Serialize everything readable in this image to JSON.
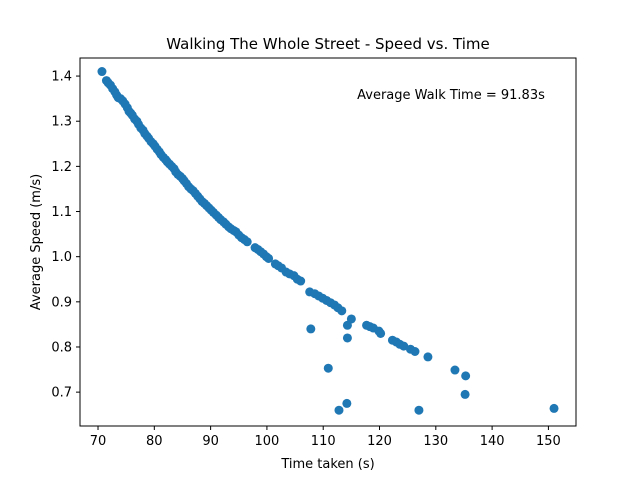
{
  "chart_data": {
    "type": "scatter",
    "title": "Walking The Whole Street - Speed vs. Time",
    "xlabel": "Time taken (s)",
    "ylabel": "Average Speed (m/s)",
    "annotation": "Average Walk Time = 91.83s",
    "xlim": [
      66.8,
      154.9
    ],
    "ylim": [
      0.625,
      1.44
    ],
    "xticks": [
      70,
      80,
      90,
      100,
      110,
      120,
      130,
      140,
      150
    ],
    "yticks": [
      0.7,
      0.8,
      0.9,
      1.0,
      1.1,
      1.2,
      1.3,
      1.4
    ],
    "xtick_labels": [
      "70",
      "80",
      "90",
      "100",
      "110",
      "120",
      "130",
      "140",
      "150"
    ],
    "ytick_labels": [
      "0.7",
      "0.8",
      "0.9",
      "1.0",
      "1.1",
      "1.2",
      "1.3",
      "1.4"
    ],
    "grid": false,
    "marker_color": "#1f77b4",
    "points": [
      [
        70.7,
        1.41
      ],
      [
        71.5,
        1.39
      ],
      [
        71.8,
        1.385
      ],
      [
        72.2,
        1.38
      ],
      [
        72.6,
        1.372
      ],
      [
        73.0,
        1.365
      ],
      [
        73.3,
        1.358
      ],
      [
        73.6,
        1.352
      ],
      [
        74.0,
        1.35
      ],
      [
        74.4,
        1.345
      ],
      [
        74.8,
        1.338
      ],
      [
        75.2,
        1.33
      ],
      [
        75.5,
        1.322
      ],
      [
        75.8,
        1.318
      ],
      [
        76.1,
        1.313
      ],
      [
        76.5,
        1.305
      ],
      [
        76.9,
        1.3
      ],
      [
        77.2,
        1.293
      ],
      [
        77.6,
        1.285
      ],
      [
        78.0,
        1.28
      ],
      [
        78.3,
        1.273
      ],
      [
        78.7,
        1.267
      ],
      [
        79.0,
        1.262
      ],
      [
        79.4,
        1.255
      ],
      [
        79.8,
        1.25
      ],
      [
        80.1,
        1.245
      ],
      [
        80.5,
        1.238
      ],
      [
        80.9,
        1.232
      ],
      [
        81.2,
        1.226
      ],
      [
        81.6,
        1.22
      ],
      [
        82.0,
        1.215
      ],
      [
        82.3,
        1.21
      ],
      [
        82.7,
        1.205
      ],
      [
        83.1,
        1.2
      ],
      [
        83.5,
        1.195
      ],
      [
        83.8,
        1.188
      ],
      [
        84.2,
        1.182
      ],
      [
        84.6,
        1.178
      ],
      [
        85.0,
        1.173
      ],
      [
        85.3,
        1.168
      ],
      [
        85.7,
        1.162
      ],
      [
        86.1,
        1.155
      ],
      [
        86.5,
        1.15
      ],
      [
        86.9,
        1.146
      ],
      [
        87.3,
        1.14
      ],
      [
        87.7,
        1.134
      ],
      [
        88.1,
        1.128
      ],
      [
        88.5,
        1.122
      ],
      [
        88.9,
        1.118
      ],
      [
        89.3,
        1.113
      ],
      [
        89.7,
        1.108
      ],
      [
        90.1,
        1.103
      ],
      [
        90.5,
        1.098
      ],
      [
        91.0,
        1.092
      ],
      [
        91.4,
        1.087
      ],
      [
        91.8,
        1.082
      ],
      [
        92.3,
        1.077
      ],
      [
        92.7,
        1.072
      ],
      [
        93.2,
        1.066
      ],
      [
        93.6,
        1.062
      ],
      [
        94.1,
        1.058
      ],
      [
        94.5,
        1.055
      ],
      [
        95.0,
        1.048
      ],
      [
        95.5,
        1.042
      ],
      [
        96.0,
        1.038
      ],
      [
        96.5,
        1.033
      ],
      [
        97.9,
        1.02
      ],
      [
        98.4,
        1.016
      ],
      [
        98.9,
        1.011
      ],
      [
        99.4,
        1.006
      ],
      [
        99.9,
        1.0
      ],
      [
        100.3,
        0.996
      ],
      [
        101.5,
        0.984
      ],
      [
        102.0,
        0.98
      ],
      [
        102.6,
        0.975
      ],
      [
        103.4,
        0.966
      ],
      [
        104.0,
        0.962
      ],
      [
        104.8,
        0.958
      ],
      [
        105.4,
        0.95
      ],
      [
        106.0,
        0.946
      ],
      [
        107.6,
        0.922
      ],
      [
        108.5,
        0.918
      ],
      [
        109.2,
        0.913
      ],
      [
        109.9,
        0.908
      ],
      [
        110.6,
        0.903
      ],
      [
        111.3,
        0.898
      ],
      [
        112.0,
        0.893
      ],
      [
        112.6,
        0.887
      ],
      [
        113.3,
        0.88
      ],
      [
        115.0,
        0.862
      ],
      [
        117.7,
        0.848
      ],
      [
        118.3,
        0.845
      ],
      [
        118.9,
        0.842
      ],
      [
        119.9,
        0.835
      ],
      [
        120.2,
        0.83
      ],
      [
        122.3,
        0.815
      ],
      [
        123.0,
        0.811
      ],
      [
        123.6,
        0.806
      ],
      [
        124.3,
        0.802
      ],
      [
        125.5,
        0.795
      ],
      [
        126.3,
        0.79
      ],
      [
        128.6,
        0.778
      ],
      [
        133.4,
        0.749
      ],
      [
        135.3,
        0.736
      ],
      [
        107.8,
        0.84
      ],
      [
        114.3,
        0.848
      ],
      [
        114.3,
        0.82
      ],
      [
        110.9,
        0.753
      ],
      [
        112.8,
        0.66
      ],
      [
        114.2,
        0.675
      ],
      [
        127.0,
        0.66
      ],
      [
        135.2,
        0.695
      ],
      [
        151.0,
        0.664
      ]
    ]
  }
}
